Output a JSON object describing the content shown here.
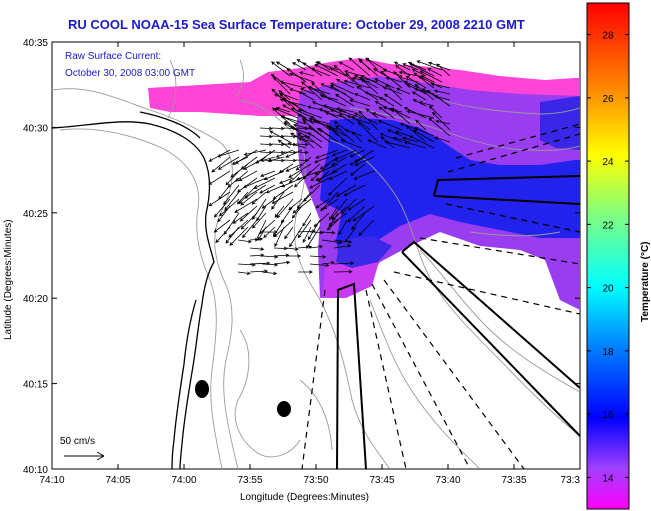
{
  "title": "RU COOL  NOAA-15  Sea Surface Temperature:  October 29, 2008 2210 GMT",
  "annotation": {
    "line1": "Raw Surface Current:",
    "line2": "October 30, 2008 03:00 GMT"
  },
  "axes": {
    "xlabel": "Longitude (Degrees:Minutes)",
    "ylabel": "Latitude (Degrees:Minutes)",
    "x_ticks": [
      "74:10",
      "74:05",
      "74:00",
      "73:55",
      "73:50",
      "73:45",
      "73:40",
      "73:35",
      "73:3"
    ],
    "y_ticks": [
      "40:35",
      "40:30",
      "40:25",
      "40:20",
      "40:15",
      "40:10"
    ]
  },
  "colorbar": {
    "label": "Temperature (°C)",
    "ticks": [
      "28",
      "26",
      "24",
      "22",
      "20",
      "18",
      "16",
      "14"
    ],
    "vmin": 13,
    "vmax": 29
  },
  "scale_label": "50 cm/s",
  "colors": {
    "title": "#1a1acc",
    "sst_warm": "#ff3fd0",
    "sst_mid": "#8a3cf0",
    "sst_cool": "#1e1ee8",
    "coast": "#000000",
    "bathymetry": "#9a9a9a"
  },
  "icons": [
    "north-arrow-icon"
  ]
}
